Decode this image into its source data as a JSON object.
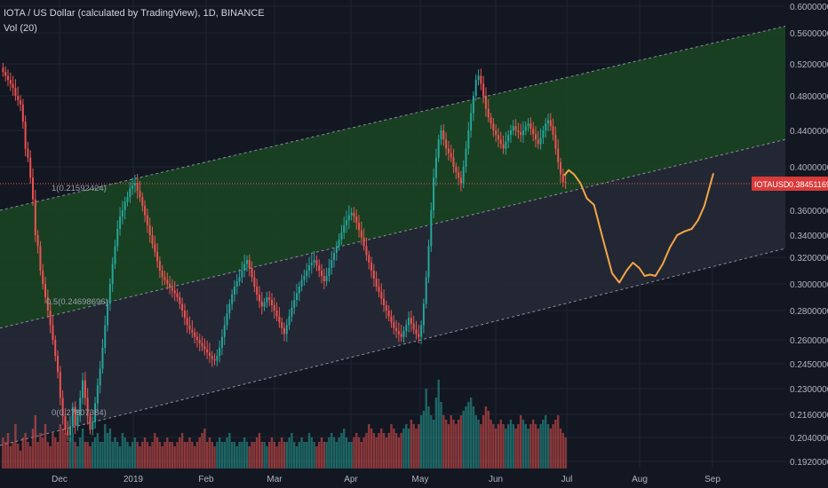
{
  "header": {
    "title": "IOTA / US Dollar (calculated by TradingView), 1D, BINANCE",
    "volume_label": "Vol (20)"
  },
  "colors": {
    "background": "#131722",
    "grid": "#1f2432",
    "up": "#26a69a",
    "down": "#ef5350",
    "channel_upper_fill": "#1b4424",
    "channel_lower_fill": "#262936",
    "forecast": "#f2a646",
    "price_line": "#e8574f",
    "axis_text": "#b2b5be"
  },
  "chart_data": {
    "type": "candlestick",
    "symbol": "IOTAUSD",
    "last_price": 0.38451169,
    "last_price_label": "0.38451169",
    "ylim": [
      0.1875,
      0.6
    ],
    "y_ticks": [
      "0.60000000",
      "0.56000000",
      "0.52000000",
      "0.48000000",
      "0.44000000",
      "0.40000000",
      "0.36000000",
      "0.34000000",
      "0.32000000",
      "0.30000000",
      "0.28000000",
      "0.26000000",
      "0.24500000",
      "0.23000000",
      "0.21600000",
      "0.20400000",
      "0.19200000"
    ],
    "x_ticks": [
      "Dec",
      "2019",
      "Feb",
      "Mar",
      "Apr",
      "May",
      "Jun",
      "Jul",
      "Aug",
      "Sep"
    ],
    "fib_labels": [
      "1(0.21592424)",
      "0.5(0.24698696)",
      "0(0.27807384)"
    ],
    "closes": [
      0.51,
      0.505,
      0.5,
      0.495,
      0.49,
      0.48,
      0.475,
      0.47,
      0.45,
      0.42,
      0.41,
      0.39,
      0.37,
      0.34,
      0.33,
      0.31,
      0.3,
      0.29,
      0.28,
      0.27,
      0.26,
      0.25,
      0.24,
      0.225,
      0.215,
      0.208,
      0.205,
      0.21,
      0.22,
      0.21,
      0.215,
      0.225,
      0.235,
      0.225,
      0.215,
      0.208,
      0.212,
      0.222,
      0.232,
      0.242,
      0.255,
      0.27,
      0.285,
      0.3,
      0.315,
      0.33,
      0.345,
      0.355,
      0.36,
      0.368,
      0.372,
      0.38,
      0.383,
      0.385,
      0.378,
      0.372,
      0.364,
      0.356,
      0.348,
      0.34,
      0.332,
      0.325,
      0.317,
      0.31,
      0.305,
      0.303,
      0.3,
      0.297,
      0.295,
      0.293,
      0.29,
      0.285,
      0.28,
      0.275,
      0.27,
      0.267,
      0.265,
      0.262,
      0.26,
      0.258,
      0.256,
      0.254,
      0.252,
      0.25,
      0.248,
      0.247,
      0.25,
      0.255,
      0.262,
      0.27,
      0.278,
      0.285,
      0.292,
      0.298,
      0.302,
      0.305,
      0.31,
      0.315,
      0.318,
      0.312,
      0.305,
      0.298,
      0.292,
      0.287,
      0.283,
      0.286,
      0.29,
      0.288,
      0.284,
      0.28,
      0.276,
      0.272,
      0.268,
      0.264,
      0.27,
      0.276,
      0.282,
      0.288,
      0.293,
      0.298,
      0.303,
      0.306,
      0.31,
      0.314,
      0.316,
      0.318,
      0.314,
      0.31,
      0.306,
      0.302,
      0.306,
      0.312,
      0.318,
      0.324,
      0.33,
      0.336,
      0.342,
      0.348,
      0.352,
      0.356,
      0.358,
      0.355,
      0.35,
      0.344,
      0.338,
      0.33,
      0.322,
      0.316,
      0.31,
      0.304,
      0.298,
      0.294,
      0.289,
      0.284,
      0.28,
      0.276,
      0.272,
      0.268,
      0.266,
      0.264,
      0.262,
      0.266,
      0.27,
      0.275,
      0.271,
      0.267,
      0.264,
      0.262,
      0.27,
      0.285,
      0.305,
      0.33,
      0.36,
      0.39,
      0.41,
      0.43,
      0.44,
      0.43,
      0.42,
      0.415,
      0.41,
      0.4,
      0.395,
      0.39,
      0.385,
      0.4,
      0.42,
      0.44,
      0.46,
      0.48,
      0.5,
      0.505,
      0.495,
      0.48,
      0.465,
      0.455,
      0.448,
      0.44,
      0.435,
      0.43,
      0.425,
      0.42,
      0.428,
      0.435,
      0.44,
      0.445,
      0.44,
      0.438,
      0.435,
      0.44,
      0.445,
      0.448,
      0.442,
      0.436,
      0.43,
      0.425,
      0.432,
      0.44,
      0.448,
      0.452,
      0.445,
      0.435,
      0.42,
      0.405,
      0.393,
      0.386,
      0.385
    ],
    "volumes": [
      0.35,
      0.3,
      0.4,
      0.25,
      0.3,
      0.5,
      0.28,
      0.2,
      0.35,
      0.4,
      0.3,
      0.25,
      0.45,
      0.6,
      0.3,
      0.4,
      0.35,
      0.5,
      0.3,
      0.25,
      0.4,
      0.35,
      0.3,
      0.5,
      0.45,
      0.4,
      0.3,
      0.35,
      0.4,
      0.3,
      0.25,
      0.35,
      0.45,
      0.3,
      0.3,
      0.25,
      0.3,
      0.35,
      0.4,
      0.3,
      0.3,
      0.5,
      0.4,
      0.45,
      0.3,
      0.35,
      0.3,
      0.25,
      0.4,
      0.35,
      0.3,
      0.25,
      0.3,
      0.35,
      0.3,
      0.25,
      0.3,
      0.35,
      0.3,
      0.25,
      0.3,
      0.4,
      0.35,
      0.3,
      0.25,
      0.3,
      0.35,
      0.3,
      0.3,
      0.25,
      0.3,
      0.35,
      0.4,
      0.3,
      0.3,
      0.35,
      0.3,
      0.25,
      0.3,
      0.35,
      0.4,
      0.45,
      0.3,
      0.35,
      0.3,
      0.25,
      0.3,
      0.35,
      0.3,
      0.3,
      0.35,
      0.4,
      0.3,
      0.3,
      0.25,
      0.3,
      0.3,
      0.35,
      0.3,
      0.25,
      0.3,
      0.3,
      0.35,
      0.4,
      0.3,
      0.3,
      0.25,
      0.3,
      0.35,
      0.3,
      0.25,
      0.3,
      0.35,
      0.3,
      0.3,
      0.35,
      0.4,
      0.3,
      0.25,
      0.3,
      0.35,
      0.3,
      0.3,
      0.4,
      0.35,
      0.3,
      0.25,
      0.3,
      0.35,
      0.3,
      0.3,
      0.35,
      0.4,
      0.35,
      0.3,
      0.35,
      0.4,
      0.45,
      0.35,
      0.3,
      0.3,
      0.35,
      0.4,
      0.35,
      0.3,
      0.35,
      0.4,
      0.5,
      0.45,
      0.4,
      0.35,
      0.4,
      0.45,
      0.4,
      0.35,
      0.4,
      0.5,
      0.45,
      0.4,
      0.35,
      0.4,
      0.45,
      0.5,
      0.45,
      0.55,
      0.5,
      0.45,
      0.5,
      0.6,
      0.65,
      0.9,
      0.7,
      0.6,
      0.55,
      0.8,
      1.0,
      0.75,
      0.6,
      0.55,
      0.5,
      0.6,
      0.55,
      0.5,
      0.55,
      0.6,
      0.65,
      0.7,
      0.75,
      0.8,
      0.7,
      0.6,
      0.55,
      0.5,
      0.6,
      0.7,
      0.65,
      0.55,
      0.5,
      0.45,
      0.5,
      0.55,
      0.5,
      0.45,
      0.5,
      0.55,
      0.5,
      0.45,
      0.5,
      0.6,
      0.55,
      0.5,
      0.45,
      0.5,
      0.55,
      0.5,
      0.45,
      0.5,
      0.55,
      0.6,
      0.5,
      0.45,
      0.5,
      0.55,
      0.6,
      0.45,
      0.4,
      0.35
    ],
    "forecast_path": [
      [
        0.387,
        0.392
      ],
      [
        0.392,
        0.397
      ],
      [
        0.398,
        0.393
      ],
      [
        0.405,
        0.385
      ],
      [
        0.412,
        0.371
      ],
      [
        0.42,
        0.365
      ],
      [
        0.43,
        0.336
      ],
      [
        0.44,
        0.308
      ],
      [
        0.448,
        0.301
      ],
      [
        0.456,
        0.31
      ],
      [
        0.463,
        0.316
      ],
      [
        0.47,
        0.312
      ],
      [
        0.476,
        0.306
      ],
      [
        0.482,
        0.307
      ],
      [
        0.488,
        0.306
      ],
      [
        0.496,
        0.315
      ],
      [
        0.504,
        0.329
      ],
      [
        0.512,
        0.34
      ],
      [
        0.52,
        0.343
      ],
      [
        0.528,
        0.345
      ],
      [
        0.535,
        0.352
      ],
      [
        0.542,
        0.364
      ],
      [
        0.548,
        0.382
      ],
      [
        0.552,
        0.394
      ]
    ],
    "channel": {
      "upper": [
        [
          0,
          0.36
        ],
        [
          1,
          0.57
        ]
      ],
      "middle": [
        [
          0,
          0.268
        ],
        [
          1,
          0.43
        ]
      ],
      "lower": [
        [
          0,
          0.2
        ],
        [
          1,
          0.328
        ]
      ]
    }
  }
}
